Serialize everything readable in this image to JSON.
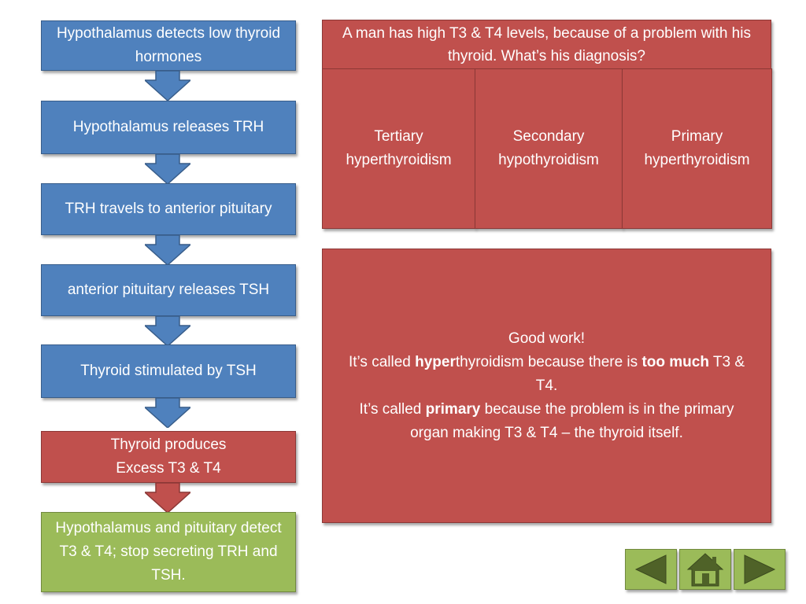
{
  "flow": {
    "step1": "Hypothalamus detects low thyroid hormones",
    "step2": "Hypothalamus releases TRH",
    "step3": "TRH travels to anterior pituitary",
    "step4": "anterior pituitary releases TSH",
    "step5": "Thyroid stimulated by TSH",
    "step6": "Thyroid produces\nExcess T3 & T4",
    "step7": "Hypothalamus and pituitary detect T3 & T4; stop secreting TRH and TSH."
  },
  "question": "A man has high T3 & T4 levels, because of a problem with his thyroid.  What’s his diagnosis?",
  "options": {
    "opt1": "Tertiary\nhyperthyroidism",
    "opt2": "Secondary\nhypothyroidism",
    "opt3": "Primary\nhyperthyroidism"
  },
  "feedback": {
    "line1": "Good work!",
    "l2a": "It’s called ",
    "l2b": "hyper",
    "l2c": "thyroidism because there is ",
    "l2d": "too much",
    "l2e": " T3 & T4.",
    "l3a": "It’s called ",
    "l3b": "primary",
    "l3c": " because the problem is in the primary organ making T3 & T4 – the thyroid itself."
  },
  "nav": {
    "back_icon": "left-triangle-icon",
    "home_icon": "house-icon",
    "next_icon": "right-triangle-icon"
  },
  "colors": {
    "blue": "#4f81bd",
    "red": "#c0504d",
    "green": "#9bbb59",
    "nav_dark": "#4f6228"
  }
}
